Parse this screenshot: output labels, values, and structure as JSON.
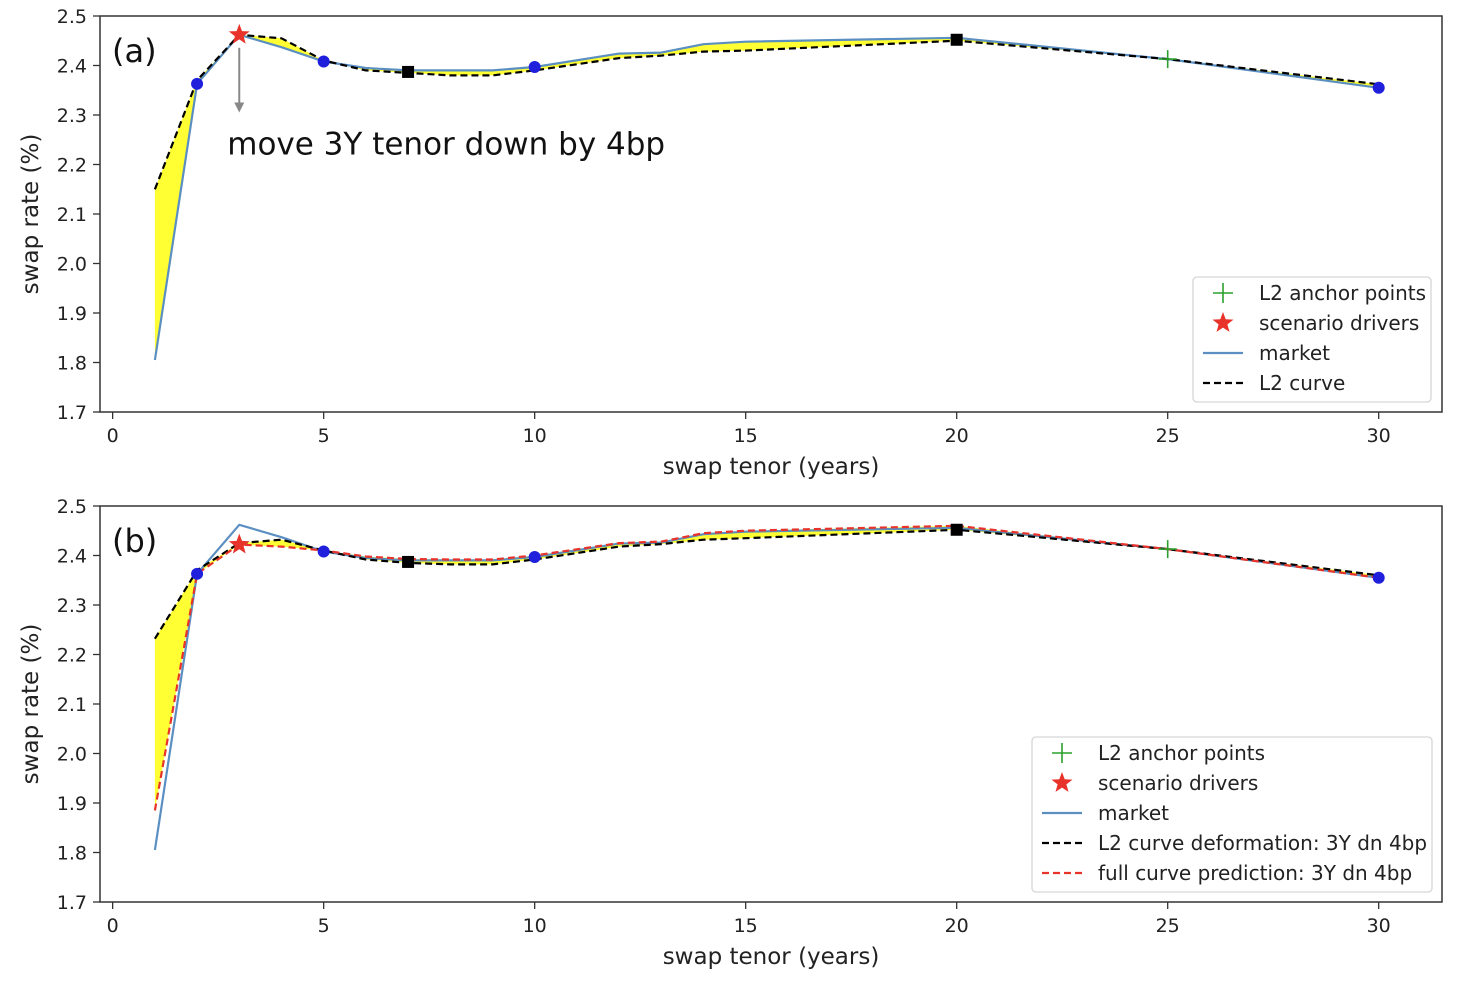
{
  "chart_data": [
    {
      "type": "line",
      "panel_label": "(a)",
      "xlabel": "swap tenor (years)",
      "ylabel": "swap rate (%)",
      "xlim": [
        -0.3,
        31.5
      ],
      "ylim": [
        1.7,
        2.5
      ],
      "xticks": [
        0,
        5,
        10,
        15,
        20,
        25,
        30
      ],
      "yticks": [
        1.7,
        1.8,
        1.9,
        2.0,
        2.1,
        2.2,
        2.3,
        2.4,
        2.5
      ],
      "annotation": {
        "text": "move 3Y tenor down by 4bp",
        "arrow_from": [
          3,
          2.46
        ],
        "arrow_to": [
          3,
          2.305
        ]
      },
      "fill_between": [
        "market",
        "L2 curve"
      ],
      "fill_color": "#ffff33",
      "series": [
        {
          "name": "market",
          "style": "solid",
          "color": "#5b8fc2",
          "x": [
            1,
            2,
            3,
            4,
            5,
            6,
            7,
            8,
            9,
            10,
            12,
            13,
            14,
            15,
            20,
            25,
            30
          ],
          "y": [
            1.805,
            2.363,
            2.462,
            2.437,
            2.408,
            2.395,
            2.39,
            2.39,
            2.39,
            2.397,
            2.424,
            2.426,
            2.443,
            2.448,
            2.456,
            2.413,
            2.355
          ]
        },
        {
          "name": "L2 curve",
          "style": "dashed",
          "color": "#000000",
          "x": [
            1,
            2,
            3,
            4,
            5,
            6,
            7,
            8,
            9,
            10,
            12,
            13,
            14,
            15,
            20,
            25,
            30
          ],
          "y": [
            2.15,
            2.37,
            2.462,
            2.455,
            2.41,
            2.39,
            2.385,
            2.38,
            2.38,
            2.39,
            2.415,
            2.42,
            2.428,
            2.43,
            2.45,
            2.413,
            2.362
          ]
        },
        {
          "name": "L2 anchor points",
          "style": "plus",
          "color": "#2ca02c",
          "x": [
            25
          ],
          "y": [
            2.413
          ]
        },
        {
          "name": "scenario drivers",
          "style": "star",
          "color": "#e8332a",
          "x": [
            3
          ],
          "y": [
            2.462
          ]
        },
        {
          "name": "circle markers",
          "style": "circle",
          "color": "#1f1fdc",
          "x": [
            2,
            5,
            10,
            30
          ],
          "y": [
            2.363,
            2.408,
            2.397,
            2.355
          ]
        },
        {
          "name": "square markers",
          "style": "square",
          "color": "#000000",
          "x": [
            7,
            20
          ],
          "y": [
            2.387,
            2.452
          ]
        }
      ],
      "legend": {
        "position": "lower-right",
        "entries": [
          {
            "label": "L2 anchor points",
            "style": "plus",
            "color": "#2ca02c"
          },
          {
            "label": "scenario drivers",
            "style": "star",
            "color": "#e8332a"
          },
          {
            "label": "market",
            "style": "solid",
            "color": "#5b8fc2"
          },
          {
            "label": "L2 curve",
            "style": "dashed",
            "color": "#000000"
          }
        ]
      }
    },
    {
      "type": "line",
      "panel_label": "(b)",
      "xlabel": "swap tenor (years)",
      "ylabel": "swap rate (%)",
      "xlim": [
        -0.3,
        31.5
      ],
      "ylim": [
        1.7,
        2.5
      ],
      "xticks": [
        0,
        5,
        10,
        15,
        20,
        25,
        30
      ],
      "yticks": [
        1.7,
        1.8,
        1.9,
        2.0,
        2.1,
        2.2,
        2.3,
        2.4,
        2.5
      ],
      "fill_between": [
        "full curve prediction: 3Y dn 4bp",
        "L2 curve deformation: 3Y dn 4bp"
      ],
      "fill_color": "#ffff33",
      "series": [
        {
          "name": "market",
          "style": "solid",
          "color": "#5b8fc2",
          "x": [
            1,
            2,
            3,
            4,
            5,
            6,
            7,
            8,
            9,
            10,
            12,
            13,
            14,
            15,
            20,
            25,
            30
          ],
          "y": [
            1.805,
            2.363,
            2.462,
            2.437,
            2.408,
            2.395,
            2.39,
            2.39,
            2.39,
            2.397,
            2.424,
            2.426,
            2.443,
            2.448,
            2.456,
            2.413,
            2.355
          ]
        },
        {
          "name": "L2 curve deformation: 3Y dn 4bp",
          "style": "dashed",
          "color": "#000000",
          "x": [
            1,
            2,
            3,
            4,
            5,
            6,
            7,
            8,
            9,
            10,
            12,
            13,
            14,
            15,
            20,
            25,
            30
          ],
          "y": [
            2.232,
            2.37,
            2.425,
            2.432,
            2.41,
            2.392,
            2.385,
            2.382,
            2.382,
            2.392,
            2.418,
            2.423,
            2.432,
            2.435,
            2.452,
            2.413,
            2.36
          ]
        },
        {
          "name": "full curve prediction: 3Y dn 4bp",
          "style": "dashed",
          "color": "#e8332a",
          "x": [
            1,
            2,
            3,
            4,
            5,
            6,
            7,
            8,
            9,
            10,
            12,
            13,
            14,
            15,
            20,
            25,
            30
          ],
          "y": [
            1.885,
            2.363,
            2.422,
            2.418,
            2.41,
            2.398,
            2.393,
            2.392,
            2.392,
            2.4,
            2.425,
            2.428,
            2.445,
            2.45,
            2.46,
            2.413,
            2.355
          ]
        },
        {
          "name": "L2 anchor points",
          "style": "plus",
          "color": "#2ca02c",
          "x": [
            25
          ],
          "y": [
            2.413
          ]
        },
        {
          "name": "scenario drivers",
          "style": "star",
          "color": "#e8332a",
          "x": [
            3
          ],
          "y": [
            2.422
          ]
        },
        {
          "name": "circle markers",
          "style": "circle",
          "color": "#1f1fdc",
          "x": [
            2,
            5,
            10,
            30
          ],
          "y": [
            2.363,
            2.408,
            2.397,
            2.355
          ]
        },
        {
          "name": "square markers",
          "style": "square",
          "color": "#000000",
          "x": [
            7,
            20
          ],
          "y": [
            2.387,
            2.452
          ]
        }
      ],
      "legend": {
        "position": "lower-right",
        "entries": [
          {
            "label": "L2 anchor points",
            "style": "plus",
            "color": "#2ca02c"
          },
          {
            "label": "scenario drivers",
            "style": "star",
            "color": "#e8332a"
          },
          {
            "label": "market",
            "style": "solid",
            "color": "#5b8fc2"
          },
          {
            "label": "L2 curve deformation: 3Y dn 4bp",
            "style": "dashed",
            "color": "#000000"
          },
          {
            "label": "full curve prediction: 3Y dn 4bp",
            "style": "dashed",
            "color": "#e8332a"
          }
        ]
      }
    }
  ]
}
